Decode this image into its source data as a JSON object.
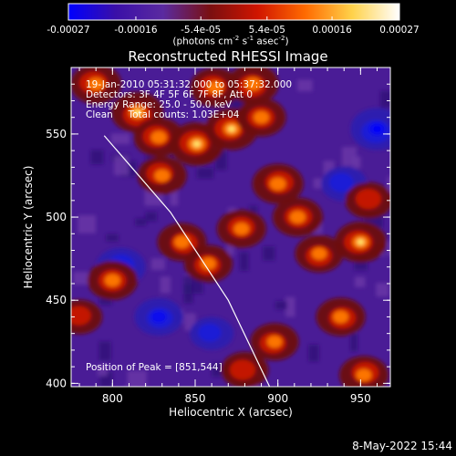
{
  "chart_data": {
    "type": "heatmap",
    "title": "Reconstructed RHESSI Image",
    "xlabel": "Heliocentric X (arcsec)",
    "ylabel": "Heliocentric Y (arcsec)",
    "xlim": [
      775,
      968
    ],
    "ylim": [
      398,
      590
    ],
    "x_ticks": [
      800,
      850,
      900,
      950
    ],
    "y_ticks": [
      400,
      450,
      500,
      550
    ],
    "colorbar": {
      "ticks": [
        "-0.00027",
        "-0.00016",
        "-5.4e-05",
        "5.4e-05",
        "0.00016",
        "0.00027"
      ],
      "tick_values": [
        -0.00027,
        -0.00016,
        -5.4e-05,
        5.4e-05,
        0.00016,
        0.00027
      ],
      "range": [
        -0.00027,
        0.00027
      ],
      "units_prefix": "(photons cm",
      "units_exp1": "-2",
      "units_mid": " s",
      "units_exp2": "-1",
      "units_mid2": " asec",
      "units_exp3": "-2",
      "units_suffix": ")",
      "colors": [
        "#0000ff",
        "#3a0fa8",
        "#5a2aa0",
        "#7a0f10",
        "#d01500",
        "#ff6a00",
        "#ffd24a",
        "#ffffff"
      ]
    },
    "annotations": {
      "time": "19-Jan-2010 05:31:32.000 to 05:37:32.000",
      "detectors": "Detectors: 3F 4F 5F 6F 7F 8F, Att 0",
      "energy": "Energy Range: 25.0 - 50.0 keV",
      "clean": "Clean     Total counts: 1.03E+04",
      "peak": "Position of Peak = [851,544]"
    },
    "limb_curve": [
      [
        795,
        549
      ],
      [
        835,
        503
      ],
      [
        870,
        450
      ],
      [
        895,
        398
      ]
    ],
    "bright_regions": [
      {
        "x": 790,
        "y": 580,
        "level": 0.8
      },
      {
        "x": 800,
        "y": 462,
        "level": 0.75
      },
      {
        "x": 815,
        "y": 563,
        "level": 0.85
      },
      {
        "x": 828,
        "y": 548,
        "level": 0.75
      },
      {
        "x": 830,
        "y": 525,
        "level": 0.7
      },
      {
        "x": 851,
        "y": 544,
        "level": 1.0
      },
      {
        "x": 862,
        "y": 578,
        "level": 0.75
      },
      {
        "x": 872,
        "y": 553,
        "level": 0.9
      },
      {
        "x": 885,
        "y": 580,
        "level": 0.8
      },
      {
        "x": 890,
        "y": 560,
        "level": 0.7
      },
      {
        "x": 842,
        "y": 485,
        "level": 0.7
      },
      {
        "x": 858,
        "y": 472,
        "level": 0.65
      },
      {
        "x": 878,
        "y": 493,
        "level": 0.7
      },
      {
        "x": 900,
        "y": 520,
        "level": 0.8
      },
      {
        "x": 912,
        "y": 500,
        "level": 0.75
      },
      {
        "x": 925,
        "y": 478,
        "level": 0.65
      },
      {
        "x": 950,
        "y": 485,
        "level": 0.85
      },
      {
        "x": 955,
        "y": 510,
        "level": 0.6
      },
      {
        "x": 938,
        "y": 440,
        "level": 0.7
      },
      {
        "x": 898,
        "y": 425,
        "level": 0.65
      },
      {
        "x": 880,
        "y": 408,
        "level": 0.6
      },
      {
        "x": 952,
        "y": 405,
        "level": 0.7
      },
      {
        "x": 780,
        "y": 440,
        "level": 0.5
      }
    ],
    "cold_regions": [
      {
        "x": 960,
        "y": 553,
        "level": 0.9
      },
      {
        "x": 805,
        "y": 470,
        "level": 0.7
      },
      {
        "x": 828,
        "y": 440,
        "level": 0.65
      },
      {
        "x": 940,
        "y": 520,
        "level": 0.5
      },
      {
        "x": 860,
        "y": 430,
        "level": 0.4
      }
    ]
  },
  "footer": {
    "date": "8-May-2022 15:44"
  }
}
